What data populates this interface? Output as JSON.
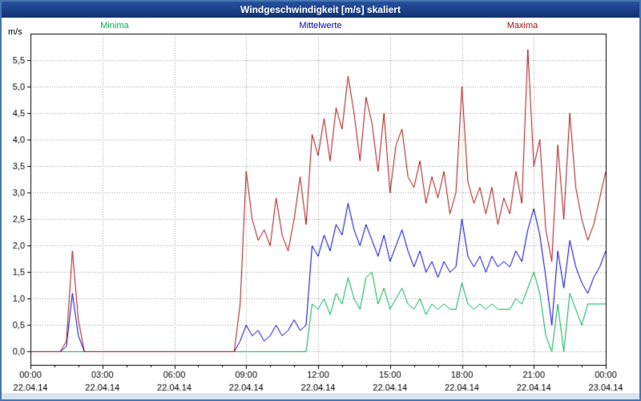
{
  "titlebar": {
    "title": "Windgeschwindigkeit [m/s] skaliert"
  },
  "chart_data": {
    "type": "line",
    "title": "Windgeschwindigkeit [m/s] skaliert",
    "xlabel": "",
    "ylabel": "m/s",
    "xlim": [
      0,
      24
    ],
    "ylim": [
      -0.25,
      6.0
    ],
    "grid": true,
    "legend_position": "top",
    "y_ticks": [
      0,
      0.5,
      1,
      1.5,
      2,
      2.5,
      3,
      3.5,
      4,
      4.5,
      5,
      5.5
    ],
    "x_ticks": [
      {
        "hour": 0,
        "time": "00:00",
        "date": "22.04.14"
      },
      {
        "hour": 3,
        "time": "03:00",
        "date": "22.04.14"
      },
      {
        "hour": 6,
        "time": "06:00",
        "date": "22.04.14"
      },
      {
        "hour": 9,
        "time": "09:00",
        "date": "22.04.14"
      },
      {
        "hour": 12,
        "time": "12:00",
        "date": "22.04.14"
      },
      {
        "hour": 15,
        "time": "15:00",
        "date": "22.04.14"
      },
      {
        "hour": 18,
        "time": "18:00",
        "date": "22.04.14"
      },
      {
        "hour": 21,
        "time": "21:00",
        "date": "22.04.14"
      },
      {
        "hour": 24,
        "time": "00:00",
        "date": "23.04.14"
      }
    ],
    "x_start_hour": 0,
    "x_step_hours": 0.25,
    "series": [
      {
        "name": "Minima",
        "color": "#00b050",
        "values": [
          0,
          0,
          0,
          0,
          0,
          0,
          0,
          0,
          0,
          0,
          0,
          0,
          0,
          0,
          0,
          0,
          0,
          0,
          0,
          0,
          0,
          0,
          0,
          0,
          0,
          0,
          0,
          0,
          0,
          0,
          0,
          0,
          0,
          0,
          0,
          0,
          0,
          0,
          0,
          0,
          0,
          0,
          0,
          0,
          0,
          0,
          0,
          0.9,
          0.8,
          1.0,
          0.7,
          1.1,
          0.9,
          1.4,
          1.0,
          0.8,
          1.4,
          1.5,
          0.9,
          1.2,
          0.8,
          1.0,
          1.2,
          0.9,
          0.8,
          1.0,
          0.7,
          0.9,
          0.8,
          0.9,
          0.8,
          0.8,
          1.3,
          0.9,
          0.8,
          0.9,
          0.8,
          0.9,
          0.8,
          0.8,
          0.8,
          1.0,
          0.9,
          1.2,
          1.5,
          1.1,
          0.3,
          0.0,
          0.9,
          0.0,
          1.1,
          0.8,
          0.5,
          0.9,
          0.9,
          0.9,
          0.9
        ]
      },
      {
        "name": "Mittelwerte",
        "color": "#0000cc",
        "values": [
          0,
          0,
          0,
          0,
          0,
          0,
          0.1,
          1.1,
          0.3,
          0,
          0,
          0,
          0,
          0,
          0,
          0,
          0,
          0,
          0,
          0,
          0,
          0,
          0,
          0,
          0,
          0,
          0,
          0,
          0,
          0,
          0,
          0,
          0,
          0,
          0,
          0.2,
          0.5,
          0.3,
          0.4,
          0.2,
          0.3,
          0.5,
          0.3,
          0.4,
          0.6,
          0.4,
          0.5,
          2.0,
          1.8,
          2.2,
          1.9,
          2.4,
          2.2,
          2.8,
          2.3,
          2.0,
          2.4,
          2.1,
          1.8,
          2.2,
          1.7,
          2.0,
          2.3,
          1.9,
          1.6,
          1.9,
          1.5,
          1.7,
          1.4,
          1.7,
          1.5,
          1.6,
          2.5,
          1.8,
          1.6,
          1.8,
          1.5,
          1.8,
          1.6,
          1.7,
          1.6,
          1.9,
          1.7,
          2.3,
          2.7,
          2.2,
          1.4,
          0.5,
          1.9,
          1.2,
          2.1,
          1.6,
          1.3,
          1.1,
          1.4,
          1.6,
          1.9
        ]
      },
      {
        "name": "Maxima",
        "color": "#aa1111",
        "values": [
          0,
          0,
          0,
          0,
          0,
          0,
          0.2,
          1.9,
          0.6,
          0,
          0,
          0,
          0,
          0,
          0,
          0,
          0,
          0,
          0,
          0,
          0,
          0,
          0,
          0,
          0,
          0,
          0,
          0,
          0,
          0,
          0,
          0,
          0,
          0,
          0,
          0.9,
          3.4,
          2.5,
          2.1,
          2.3,
          2.0,
          2.9,
          2.2,
          1.9,
          2.5,
          3.3,
          2.4,
          4.1,
          3.7,
          4.4,
          3.6,
          4.6,
          4.2,
          5.2,
          4.5,
          3.6,
          4.8,
          4.3,
          3.4,
          4.5,
          3.0,
          3.9,
          4.2,
          3.3,
          3.1,
          3.6,
          2.8,
          3.3,
          2.9,
          3.4,
          2.6,
          3.0,
          5.0,
          3.2,
          2.8,
          3.1,
          2.6,
          3.1,
          2.4,
          2.9,
          2.6,
          3.4,
          2.8,
          5.7,
          3.5,
          4.0,
          2.3,
          1.7,
          3.9,
          2.5,
          4.5,
          3.1,
          2.5,
          2.1,
          2.4,
          2.9,
          3.4
        ]
      }
    ]
  }
}
